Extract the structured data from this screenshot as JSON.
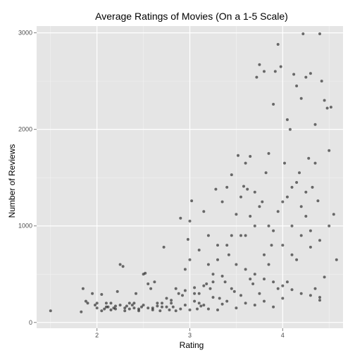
{
  "chart_data": {
    "type": "scatter",
    "title": "Average Ratings of Movies (On a 1-5 Scale)",
    "xlabel": "Rating",
    "ylabel": "Number of Reviews",
    "xlim": [
      1.35,
      4.65
    ],
    "ylim": [
      -60,
      3070
    ],
    "x_ticks": [
      2,
      3,
      4
    ],
    "x_tick_labels": [
      "2",
      "3",
      "4"
    ],
    "y_ticks": [
      0,
      1000,
      2000,
      3000
    ],
    "y_tick_labels": [
      "0",
      "1000",
      "2000",
      "3000"
    ],
    "grid": true,
    "background": "#e5e5e5",
    "point_color": "#000000",
    "points": [
      [
        1.5,
        120
      ],
      [
        1.83,
        110
      ],
      [
        1.85,
        350
      ],
      [
        1.88,
        220
      ],
      [
        1.9,
        200
      ],
      [
        1.95,
        300
      ],
      [
        1.98,
        180
      ],
      [
        2.0,
        150
      ],
      [
        2.05,
        290
      ],
      [
        2.08,
        140
      ],
      [
        2.1,
        200
      ],
      [
        2.12,
        160
      ],
      [
        2.15,
        130
      ],
      [
        2.18,
        150
      ],
      [
        2.2,
        170
      ],
      [
        2.22,
        320
      ],
      [
        2.25,
        600
      ],
      [
        2.28,
        580
      ],
      [
        2.3,
        150
      ],
      [
        2.32,
        170
      ],
      [
        2.35,
        200
      ],
      [
        2.38,
        180
      ],
      [
        2.4,
        150
      ],
      [
        2.42,
        300
      ],
      [
        2.45,
        140
      ],
      [
        2.48,
        160
      ],
      [
        2.5,
        500
      ],
      [
        2.52,
        510
      ],
      [
        2.55,
        400
      ],
      [
        2.58,
        350
      ],
      [
        2.6,
        150
      ],
      [
        2.62,
        420
      ],
      [
        2.65,
        200
      ],
      [
        2.68,
        120
      ],
      [
        2.7,
        160
      ],
      [
        2.72,
        780
      ],
      [
        2.75,
        250
      ],
      [
        2.78,
        130
      ],
      [
        2.8,
        200
      ],
      [
        2.82,
        160
      ],
      [
        2.85,
        350
      ],
      [
        2.88,
        300
      ],
      [
        2.9,
        1080
      ],
      [
        2.92,
        280
      ],
      [
        2.95,
        550
      ],
      [
        2.98,
        860
      ],
      [
        3.0,
        1050
      ],
      [
        3.02,
        1260
      ],
      [
        3.05,
        300
      ],
      [
        3.08,
        140
      ],
      [
        3.1,
        200
      ],
      [
        3.12,
        170
      ],
      [
        3.15,
        1150
      ],
      [
        3.18,
        400
      ],
      [
        3.2,
        600
      ],
      [
        3.22,
        350
      ],
      [
        3.25,
        500
      ],
      [
        3.28,
        1380
      ],
      [
        3.3,
        800
      ],
      [
        3.32,
        250
      ],
      [
        3.35,
        1250
      ],
      [
        3.38,
        420
      ],
      [
        3.4,
        1400
      ],
      [
        3.42,
        700
      ],
      [
        3.45,
        1530
      ],
      [
        3.48,
        320
      ],
      [
        3.5,
        1120
      ],
      [
        3.52,
        1730
      ],
      [
        3.55,
        900
      ],
      [
        3.58,
        1410
      ],
      [
        3.6,
        1650
      ],
      [
        3.62,
        1380
      ],
      [
        3.65,
        1720
      ],
      [
        3.68,
        400
      ],
      [
        3.7,
        1350
      ],
      [
        3.72,
        2540
      ],
      [
        3.75,
        2670
      ],
      [
        3.78,
        1250
      ],
      [
        3.8,
        2600
      ],
      [
        3.82,
        1550
      ],
      [
        3.85,
        1750
      ],
      [
        3.88,
        800
      ],
      [
        3.9,
        2260
      ],
      [
        3.92,
        2600
      ],
      [
        3.95,
        2880
      ],
      [
        3.98,
        2650
      ],
      [
        4.0,
        1250
      ],
      [
        4.02,
        1650
      ],
      [
        4.05,
        2100
      ],
      [
        4.08,
        2000
      ],
      [
        4.1,
        1400
      ],
      [
        4.12,
        2570
      ],
      [
        4.15,
        2450
      ],
      [
        4.18,
        1550
      ],
      [
        4.2,
        2320
      ],
      [
        4.22,
        2990
      ],
      [
        4.25,
        2540
      ],
      [
        4.28,
        1700
      ],
      [
        4.3,
        2580
      ],
      [
        4.32,
        1400
      ],
      [
        4.35,
        2050
      ],
      [
        4.38,
        1260
      ],
      [
        4.4,
        2990
      ],
      [
        4.42,
        2500
      ],
      [
        4.45,
        2300
      ],
      [
        4.48,
        2220
      ],
      [
        4.5,
        1780
      ],
      [
        4.52,
        2230
      ],
      [
        4.55,
        1120
      ],
      [
        4.58,
        650
      ],
      [
        4.45,
        470
      ],
      [
        4.4,
        230
      ],
      [
        4.35,
        350
      ],
      [
        4.3,
        780
      ],
      [
        4.25,
        1100
      ],
      [
        4.2,
        900
      ],
      [
        4.15,
        650
      ],
      [
        4.1,
        1000
      ],
      [
        4.05,
        420
      ],
      [
        4.0,
        250
      ],
      [
        3.95,
        350
      ],
      [
        3.9,
        160
      ],
      [
        3.85,
        600
      ],
      [
        3.8,
        220
      ],
      [
        3.75,
        300
      ],
      [
        3.7,
        180
      ],
      [
        3.65,
        450
      ],
      [
        3.6,
        200
      ],
      [
        3.55,
        280
      ],
      [
        3.5,
        150
      ],
      [
        3.45,
        350
      ],
      [
        3.4,
        220
      ],
      [
        3.35,
        190
      ],
      [
        3.3,
        130
      ],
      [
        3.25,
        260
      ],
      [
        3.2,
        140
      ],
      [
        3.15,
        180
      ],
      [
        3.1,
        300
      ],
      [
        3.05,
        220
      ],
      [
        3.0,
        130
      ],
      [
        2.95,
        180
      ],
      [
        2.9,
        140
      ],
      [
        2.85,
        120
      ],
      [
        2.8,
        230
      ],
      [
        2.75,
        160
      ],
      [
        2.7,
        200
      ],
      [
        2.65,
        170
      ],
      [
        2.6,
        130
      ],
      [
        2.55,
        150
      ],
      [
        2.5,
        180
      ],
      [
        2.45,
        120
      ],
      [
        2.4,
        200
      ],
      [
        2.35,
        140
      ],
      [
        2.3,
        120
      ],
      [
        2.25,
        180
      ],
      [
        2.2,
        140
      ],
      [
        2.15,
        200
      ],
      [
        2.1,
        160
      ],
      [
        2.05,
        120
      ],
      [
        2.0,
        200
      ],
      [
        3.6,
        900
      ],
      [
        3.7,
        1000
      ],
      [
        3.8,
        700
      ],
      [
        3.9,
        950
      ],
      [
        4.0,
        800
      ],
      [
        4.1,
        700
      ],
      [
        4.2,
        1200
      ],
      [
        4.3,
        950
      ],
      [
        4.4,
        850
      ],
      [
        4.5,
        1000
      ],
      [
        3.4,
        800
      ],
      [
        3.3,
        650
      ],
      [
        3.2,
        900
      ],
      [
        3.1,
        750
      ],
      [
        3.0,
        650
      ],
      [
        3.5,
        600
      ],
      [
        3.6,
        550
      ],
      [
        3.7,
        500
      ],
      [
        3.8,
        450
      ],
      [
        3.9,
        420
      ],
      [
        4.0,
        380
      ],
      [
        4.1,
        340
      ],
      [
        4.2,
        300
      ],
      [
        4.3,
        280
      ],
      [
        4.4,
        260
      ],
      [
        3.35,
        480
      ],
      [
        3.25,
        420
      ],
      [
        3.15,
        380
      ],
      [
        3.05,
        360
      ],
      [
        2.95,
        330
      ],
      [
        3.45,
        900
      ],
      [
        3.55,
        1300
      ],
      [
        3.65,
        1100
      ],
      [
        3.75,
        1200
      ],
      [
        3.85,
        1000
      ],
      [
        3.95,
        1150
      ],
      [
        4.05,
        1300
      ],
      [
        4.15,
        1450
      ],
      [
        4.25,
        1350
      ],
      [
        4.35,
        1650
      ]
    ]
  }
}
